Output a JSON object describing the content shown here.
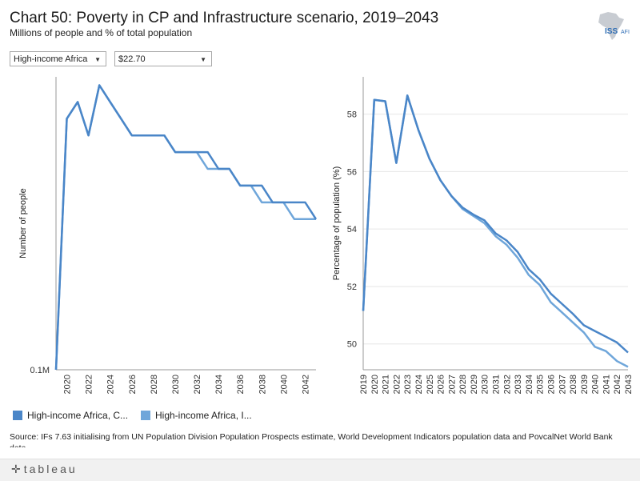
{
  "header": {
    "title": "Chart 50: Poverty in CP and Infrastructure scenario, 2019–2043",
    "subtitle": "Millions of people and % of total population",
    "logo_text_iss": "ISS",
    "logo_text_afi": "AFI"
  },
  "filters": {
    "region": "High-income Africa",
    "threshold": "$22.70"
  },
  "colors": {
    "series_cp": "#4a86c8",
    "series_infra": "#6fa6da",
    "grid": "#e6e6e6",
    "axis": "#9a9a9a"
  },
  "legend": {
    "items": [
      {
        "label": "High-income Africa, C...",
        "color": "#4a86c8"
      },
      {
        "label": "High-income Africa, I...",
        "color": "#6fa6da"
      }
    ]
  },
  "source": "Source: IFs 7.63 initialising from UN Population Division Population Prospects estimate, World Development Indicators population data and PovcalNet World Bank data",
  "footer": {
    "brand": "tableau"
  },
  "chart_data": [
    {
      "type": "line",
      "title": "",
      "xlabel": "",
      "ylabel": "Number of people",
      "y_tick_labels": [
        "0.1M"
      ],
      "x_tick_labels": [
        "2020",
        "2022",
        "2024",
        "2026",
        "2028",
        "2030",
        "2032",
        "2034",
        "2036",
        "2038",
        "2040",
        "2042"
      ],
      "x": [
        2019,
        2020,
        2021,
        2022,
        2023,
        2024,
        2025,
        2026,
        2027,
        2028,
        2029,
        2030,
        2031,
        2032,
        2033,
        2034,
        2035,
        2036,
        2037,
        2038,
        2039,
        2040,
        2041,
        2042,
        2043
      ],
      "ylim": [
        0.08,
        0.255
      ],
      "series": [
        {
          "name": "High-income Africa, C...",
          "values": [
            0.08,
            0.23,
            0.24,
            0.22,
            0.25,
            0.24,
            0.23,
            0.22,
            0.22,
            0.22,
            0.22,
            0.21,
            0.21,
            0.21,
            0.21,
            0.2,
            0.2,
            0.19,
            0.19,
            0.19,
            0.18,
            0.18,
            0.18,
            0.18,
            0.17
          ]
        },
        {
          "name": "High-income Africa, I...",
          "values": [
            0.08,
            0.23,
            0.24,
            0.22,
            0.25,
            0.24,
            0.23,
            0.22,
            0.22,
            0.22,
            0.22,
            0.21,
            0.21,
            0.21,
            0.2,
            0.2,
            0.2,
            0.19,
            0.19,
            0.18,
            0.18,
            0.18,
            0.17,
            0.17,
            0.17
          ]
        }
      ]
    },
    {
      "type": "line",
      "title": "",
      "xlabel": "",
      "ylabel": "Percentage of population (%)",
      "y_ticks": [
        50,
        52,
        54,
        56,
        58
      ],
      "x_tick_labels": [
        "2019",
        "2020",
        "2021",
        "2022",
        "2023",
        "2024",
        "2025",
        "2026",
        "2027",
        "2028",
        "2029",
        "2030",
        "2031",
        "2032",
        "2033",
        "2034",
        "2035",
        "2036",
        "2037",
        "2038",
        "2039",
        "2040",
        "2041",
        "2042",
        "2043"
      ],
      "x": [
        2019,
        2020,
        2021,
        2022,
        2023,
        2024,
        2025,
        2026,
        2027,
        2028,
        2029,
        2030,
        2031,
        2032,
        2033,
        2034,
        2035,
        2036,
        2037,
        2038,
        2039,
        2040,
        2041,
        2042,
        2043
      ],
      "ylim": [
        49.1,
        59.3
      ],
      "series": [
        {
          "name": "High-income Africa, C...",
          "values": [
            51.15,
            58.5,
            58.45,
            56.3,
            58.65,
            57.45,
            56.45,
            55.7,
            55.15,
            54.75,
            54.5,
            54.3,
            53.85,
            53.6,
            53.2,
            52.6,
            52.25,
            51.75,
            51.4,
            51.05,
            50.65,
            50.45,
            50.25,
            50.05,
            49.7
          ]
        },
        {
          "name": "High-income Africa, I...",
          "values": [
            51.15,
            58.5,
            58.45,
            56.3,
            58.65,
            57.45,
            56.45,
            55.7,
            55.15,
            54.7,
            54.45,
            54.2,
            53.75,
            53.45,
            53.0,
            52.4,
            52.05,
            51.45,
            51.1,
            50.75,
            50.4,
            49.9,
            49.75,
            49.4,
            49.2
          ]
        }
      ]
    }
  ]
}
